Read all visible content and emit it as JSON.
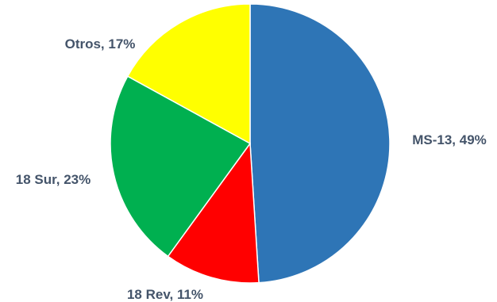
{
  "chart_data": {
    "type": "pie",
    "title": "",
    "slices": [
      {
        "label": "MS-13",
        "value": 49,
        "color": "#2e75b6",
        "text": "MS-13, 49%"
      },
      {
        "label": "18 Rev",
        "value": 11,
        "color": "#ff0000",
        "text": "18 Rev, 11%"
      },
      {
        "label": "18 Sur",
        "value": 23,
        "color": "#00b050",
        "text": "18 Sur, 23%"
      },
      {
        "label": "Otros",
        "value": 17,
        "color": "#ffff00",
        "text": "Otros, 17%"
      }
    ],
    "start_angle_deg": 0,
    "direction": "clockwise",
    "legend": "none",
    "label_color": "#44546a"
  }
}
